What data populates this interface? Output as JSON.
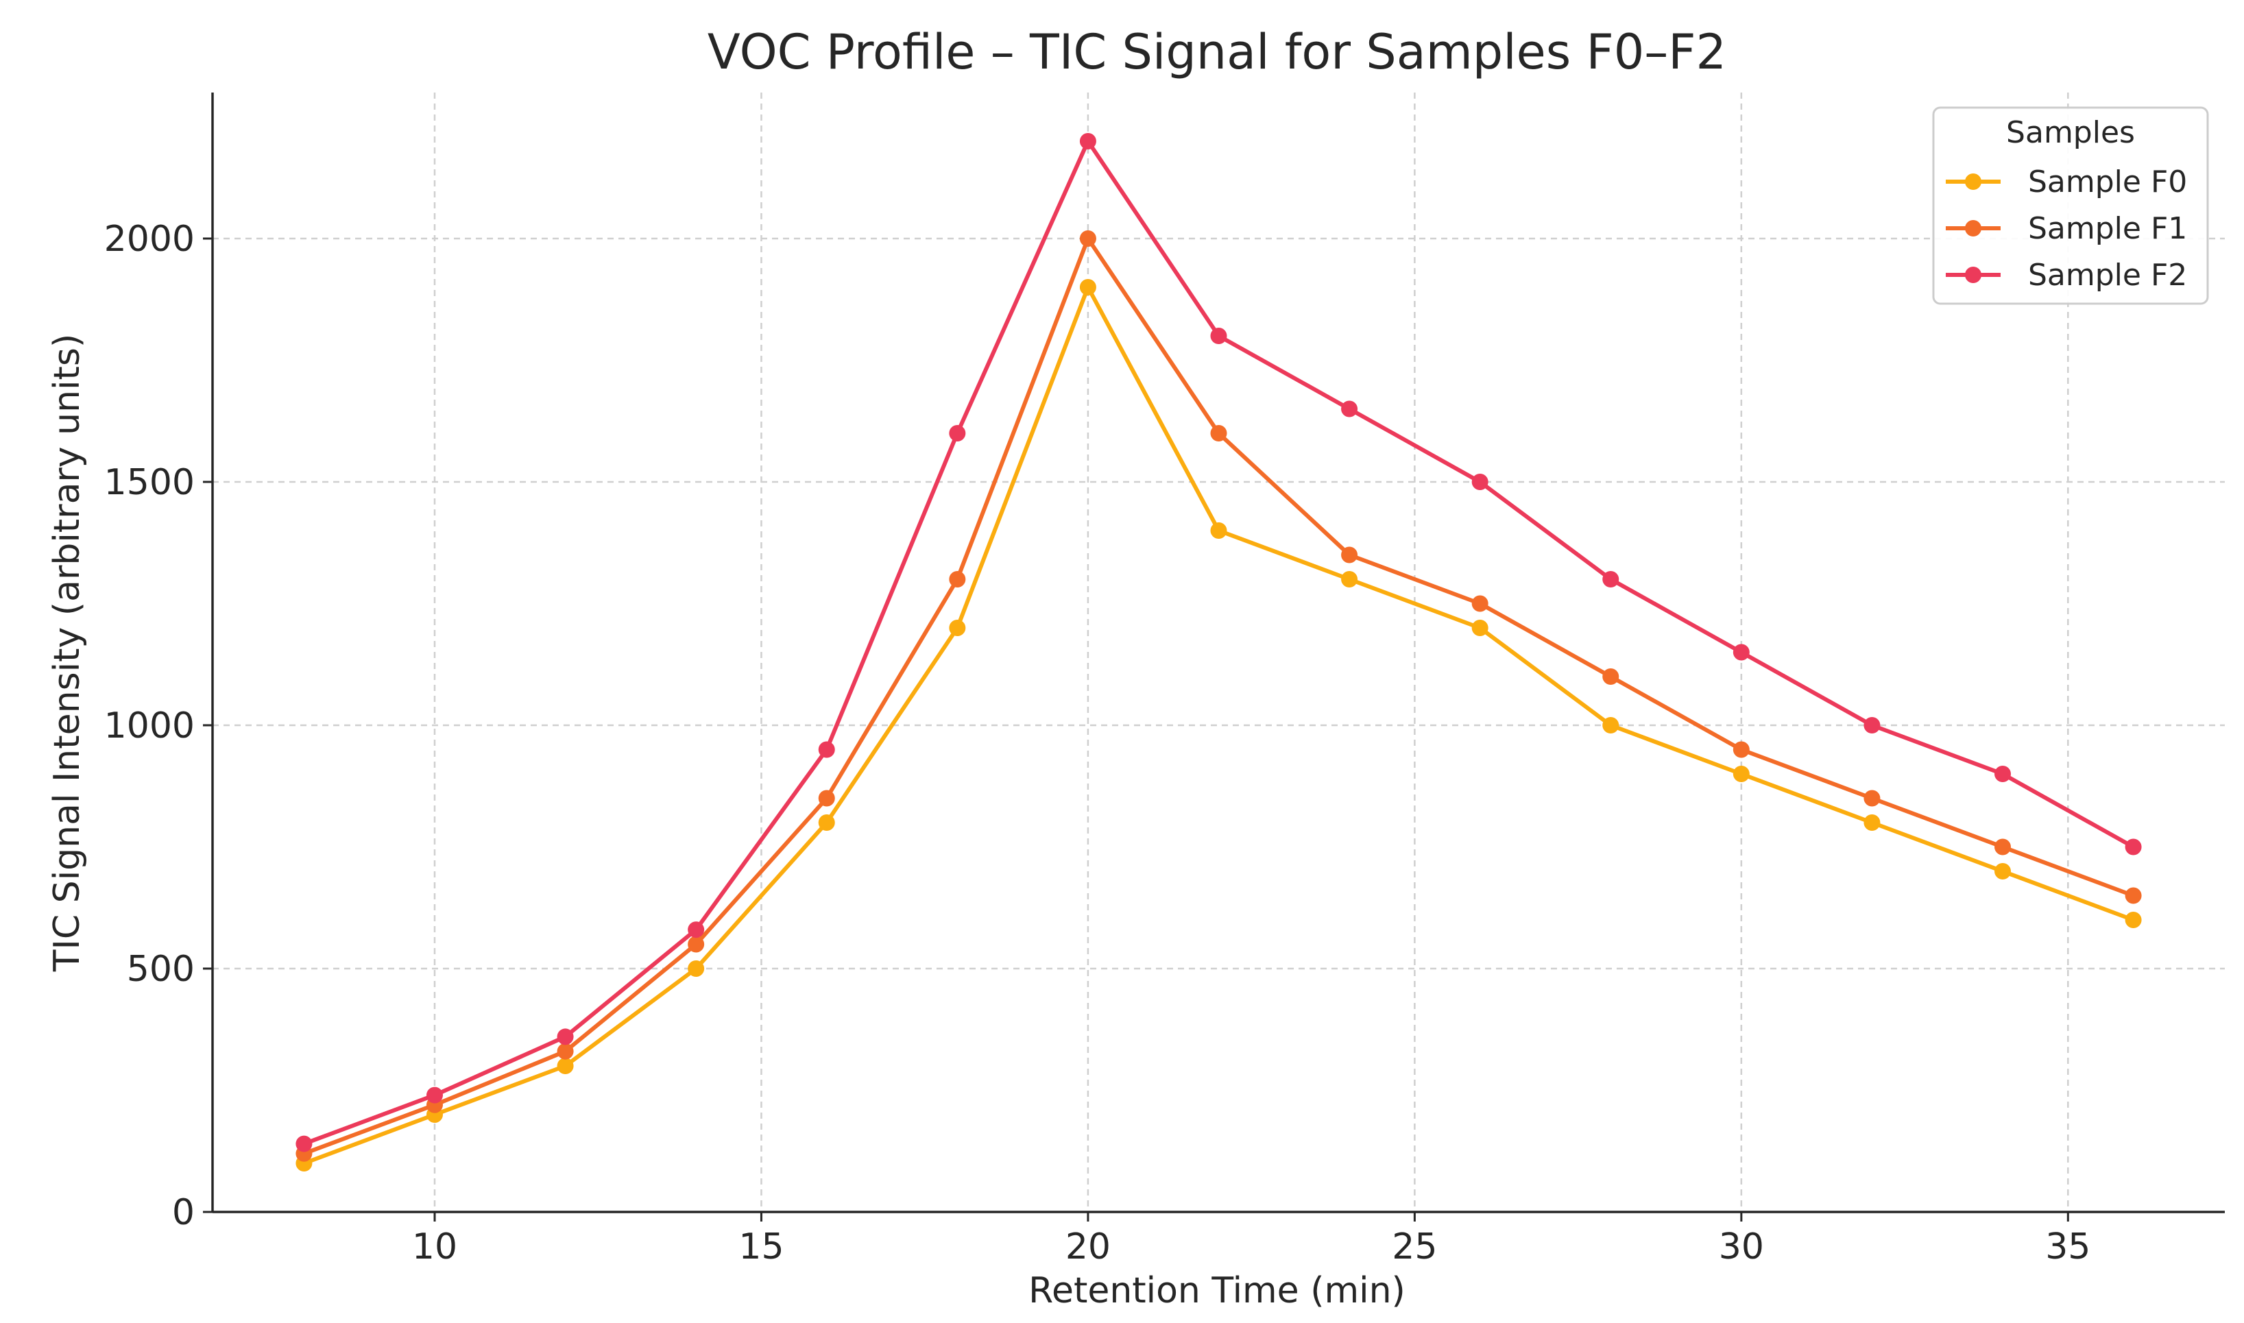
{
  "chart_data": {
    "type": "line",
    "title": "VOC Profile – TIC Signal for Samples F0–F2",
    "xlabel": "Retention Time (min)",
    "ylabel": "TIC Signal Intensity (arbitrary units)",
    "xlim": [
      6.6,
      37.4
    ],
    "ylim": [
      0,
      2300
    ],
    "xticks": [
      10,
      15,
      20,
      25,
      30,
      35
    ],
    "yticks": [
      0,
      500,
      1000,
      1500,
      2000
    ],
    "grid": true,
    "legend": {
      "title": "Samples",
      "placement": "top-right"
    },
    "x": [
      8,
      10,
      12,
      14,
      16,
      18,
      20,
      22,
      24,
      26,
      28,
      30,
      32,
      34,
      36
    ],
    "series": [
      {
        "name": "Sample F0",
        "color": "#fbac0f",
        "values": [
          100,
          200,
          300,
          500,
          800,
          1200,
          1900,
          1400,
          1300,
          1200,
          1000,
          900,
          800,
          700,
          600
        ]
      },
      {
        "name": "Sample F1",
        "color": "#f36c28",
        "values": [
          120,
          220,
          330,
          550,
          850,
          1300,
          2000,
          1600,
          1350,
          1250,
          1100,
          950,
          850,
          750,
          650
        ]
      },
      {
        "name": "Sample F2",
        "color": "#ec3a5a",
        "values": [
          140,
          240,
          360,
          580,
          950,
          1600,
          2200,
          1800,
          1650,
          1500,
          1300,
          1150,
          1000,
          900,
          750
        ]
      }
    ]
  }
}
